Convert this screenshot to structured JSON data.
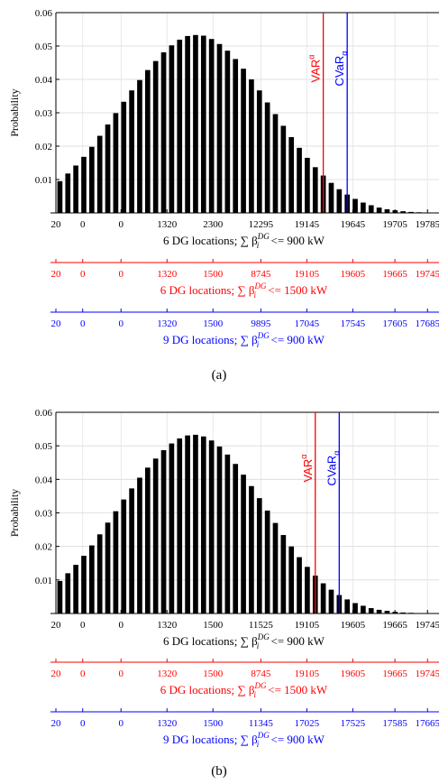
{
  "chart_data": [
    {
      "type": "bar",
      "panel_label": "(a)",
      "ylabel": "Probability",
      "ylim": [
        0,
        0.06
      ],
      "yticks": [
        0.01,
        0.02,
        0.03,
        0.04,
        0.05,
        0.06
      ],
      "ytick_labels": [
        "0.01",
        "0.02",
        "0.03",
        "0.04",
        "0.05",
        "0.06"
      ],
      "values": [
        0.0095,
        0.0118,
        0.0142,
        0.0168,
        0.0198,
        0.0231,
        0.0265,
        0.0299,
        0.0333,
        0.0367,
        0.0398,
        0.0428,
        0.0455,
        0.0481,
        0.0502,
        0.0519,
        0.053,
        0.0533,
        0.0531,
        0.0521,
        0.0506,
        0.0486,
        0.0461,
        0.0432,
        0.04,
        0.0367,
        0.0331,
        0.0296,
        0.0261,
        0.0227,
        0.0195,
        0.0165,
        0.0137,
        0.0112,
        0.009,
        0.0071,
        0.0055,
        0.0042,
        0.0031,
        0.0023,
        0.0016,
        0.0011,
        0.0008,
        0.0005,
        0.0003,
        0.0002,
        0.0001,
        0.0001
      ],
      "var_bar_index": 33,
      "cvar_bar_index": 36,
      "vlines": [
        {
          "name": "VAR",
          "sup": "α",
          "color": "#ff0000"
        },
        {
          "name": "CVaR",
          "sub": "α",
          "color": "#0000ff"
        }
      ],
      "xaxes": [
        {
          "color": "#000000",
          "tick_labels": [
            "20",
            "0",
            "0",
            "1320",
            "2300",
            "12295",
            "19145",
            "19645",
            "19705",
            "19785"
          ],
          "label_main": "6 DG locations; ∑ β",
          "label_sup": "DG",
          "label_sub": "i",
          "label_rest": " <= 900 kW"
        },
        {
          "color": "#ff0000",
          "tick_labels": [
            "20",
            "0",
            "0",
            "1320",
            "1500",
            "8745",
            "19105",
            "19605",
            "19665",
            "19745"
          ],
          "label_main": "6 DG locations; ∑ β",
          "label_sup": "DG",
          "label_sub": "i",
          "label_rest": " <= 1500 kW"
        },
        {
          "color": "#0000ff",
          "tick_labels": [
            "20",
            "0",
            "0",
            "1320",
            "1500",
            "9895",
            "17045",
            "17545",
            "17605",
            "17685"
          ],
          "label_main": "9 DG locations; ∑ β",
          "label_sup": "DG",
          "label_sub": "i",
          "label_rest": " <= 900 kW"
        }
      ]
    },
    {
      "type": "bar",
      "panel_label": "(b)",
      "ylabel": "Probability",
      "ylim": [
        0,
        0.06
      ],
      "yticks": [
        0.01,
        0.02,
        0.03,
        0.04,
        0.05,
        0.06
      ],
      "ytick_labels": [
        "0.01",
        "0.02",
        "0.03",
        "0.04",
        "0.05",
        "0.06"
      ],
      "values": [
        0.0097,
        0.012,
        0.0145,
        0.0172,
        0.0203,
        0.0236,
        0.0271,
        0.0305,
        0.034,
        0.0373,
        0.0405,
        0.0435,
        0.0462,
        0.0487,
        0.0507,
        0.0522,
        0.0531,
        0.0533,
        0.0528,
        0.0516,
        0.0498,
        0.0474,
        0.0446,
        0.0414,
        0.038,
        0.0344,
        0.0307,
        0.027,
        0.0234,
        0.02,
        0.0168,
        0.0139,
        0.0113,
        0.009,
        0.0071,
        0.0055,
        0.0042,
        0.0031,
        0.0023,
        0.0016,
        0.0011,
        0.0008,
        0.0005,
        0.0003,
        0.0002,
        0.0001,
        0.0001,
        0.0001
      ],
      "var_bar_index": 32,
      "cvar_bar_index": 35,
      "vlines": [
        {
          "name": "VAR",
          "sup": "α",
          "color": "#ff0000"
        },
        {
          "name": "CVaR",
          "sub": "α",
          "color": "#0000ff"
        }
      ],
      "xaxes": [
        {
          "color": "#000000",
          "tick_labels": [
            "20",
            "0",
            "0",
            "1320",
            "1500",
            "11525",
            "19105",
            "19605",
            "19665",
            "19745"
          ],
          "label_main": "6 DG locations; ∑ β",
          "label_sup": "DG",
          "label_sub": "i",
          "label_rest": " <= 900 kW"
        },
        {
          "color": "#ff0000",
          "tick_labels": [
            "20",
            "0",
            "0",
            "1320",
            "1500",
            "8745",
            "19105",
            "19605",
            "19665",
            "19745"
          ],
          "label_main": "6 DG locations; ∑ β",
          "label_sup": "DG",
          "label_sub": "i",
          "label_rest": " <= 1500 kW"
        },
        {
          "color": "#0000ff",
          "tick_labels": [
            "20",
            "0",
            "0",
            "1320",
            "1500",
            "11345",
            "17025",
            "17525",
            "17585",
            "17665"
          ],
          "label_main": "9 DG locations; ∑ β",
          "label_sup": "DG",
          "label_sub": "i",
          "label_rest": " <= 900 kW"
        }
      ]
    }
  ]
}
